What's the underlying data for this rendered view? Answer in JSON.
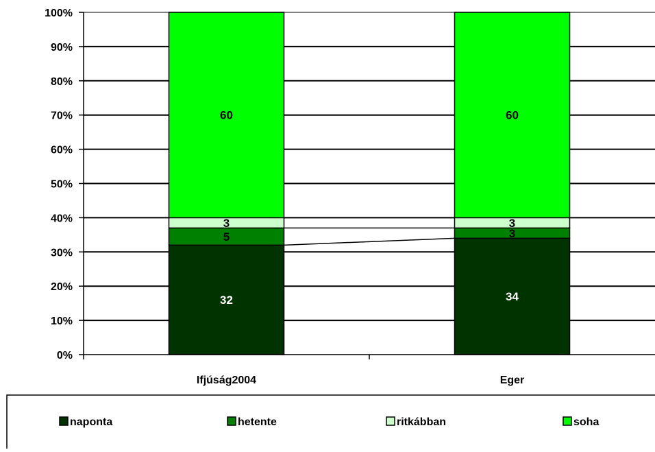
{
  "chart_data": {
    "type": "bar",
    "stacked": true,
    "percent_stacked": true,
    "categories": [
      "Ifjúság2004",
      "Eger"
    ],
    "series": [
      {
        "name": "naponta",
        "values": [
          32,
          34
        ],
        "color": "#003300"
      },
      {
        "name": "hetente",
        "values": [
          5,
          3
        ],
        "color": "#008000"
      },
      {
        "name": "ritkábban",
        "values": [
          3,
          3
        ],
        "color": "#ccffcc"
      },
      {
        "name": "soha",
        "values": [
          60,
          60
        ],
        "color": "#00ff00"
      }
    ],
    "y_ticks": [
      "0%",
      "10%",
      "20%",
      "30%",
      "40%",
      "50%",
      "60%",
      "70%",
      "80%",
      "90%",
      "100%"
    ],
    "ylim": [
      0,
      100
    ],
    "series_lines": true,
    "grid": true,
    "legend_position": "bottom"
  }
}
